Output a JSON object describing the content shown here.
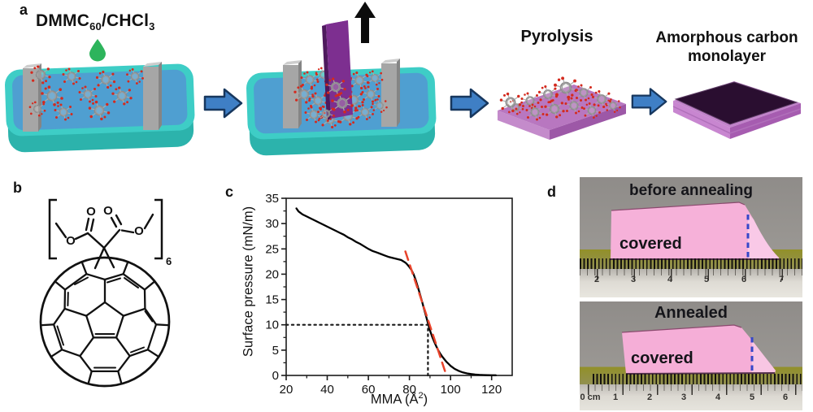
{
  "figure": {
    "panel_a": {
      "label": "a",
      "solution": {
        "pre": "DMMC",
        "sub1": "60",
        "mid": "/CHCl",
        "sub2": "3"
      },
      "step3_label": "Pyrolysis",
      "step4_label_line1": "Amorphous carbon",
      "step4_label_line2": "monolayer"
    },
    "panel_b": {
      "label": "b",
      "bracket_subscript": "6",
      "atoms": {
        "o1": "O",
        "o2": "O",
        "o3": "O",
        "o4": "O"
      }
    },
    "panel_c": {
      "label": "c",
      "ylabel": "Surface pressure (mN/m)",
      "xlabel_pre": "MMA (Å",
      "xlabel_sup": "2",
      "xlabel_post": ")"
    },
    "panel_d": {
      "label": "d",
      "top": {
        "title": "before annealing",
        "film_label": "covered",
        "ruler": [
          "2",
          "3",
          "4",
          "5",
          "6",
          "7"
        ]
      },
      "bottom": {
        "title": "Annealed",
        "film_label": "covered",
        "ruler": [
          "0 cm",
          "1",
          "2",
          "3",
          "4",
          "5",
          "6"
        ]
      }
    }
  },
  "chart_data": {
    "type": "line",
    "title": "",
    "xlabel": "MMA (Å²)",
    "ylabel": "Surface pressure (mN/m)",
    "xlim": [
      20,
      130
    ],
    "ylim": [
      0,
      35
    ],
    "x_ticks": [
      20,
      40,
      60,
      80,
      100,
      120
    ],
    "y_ticks": [
      0,
      5,
      10,
      15,
      20,
      25,
      30,
      35
    ],
    "grid": false,
    "legend": false,
    "series": [
      {
        "name": "compression-isotherm",
        "color": "#000000",
        "style": "solid",
        "width": 2.3,
        "points": [
          [
            25,
            33
          ],
          [
            26,
            32.4
          ],
          [
            28,
            31.8
          ],
          [
            30,
            31.4
          ],
          [
            32,
            31.0
          ],
          [
            34,
            30.6
          ],
          [
            36,
            30.2
          ],
          [
            38,
            29.8
          ],
          [
            40,
            29.4
          ],
          [
            42,
            29.0
          ],
          [
            44,
            28.6
          ],
          [
            46,
            28.2
          ],
          [
            48,
            27.8
          ],
          [
            50,
            27.3
          ],
          [
            52,
            26.9
          ],
          [
            54,
            26.4
          ],
          [
            56,
            26.0
          ],
          [
            58,
            25.5
          ],
          [
            60,
            25.0
          ],
          [
            62,
            24.6
          ],
          [
            64,
            24.3
          ],
          [
            66,
            24.0
          ],
          [
            68,
            23.7
          ],
          [
            70,
            23.4
          ],
          [
            72,
            23.2
          ],
          [
            74,
            23.0
          ],
          [
            76,
            22.8
          ],
          [
            78,
            22.3
          ],
          [
            79,
            21.9
          ],
          [
            80,
            21.4
          ],
          [
            81,
            20.8
          ],
          [
            82,
            20.0
          ],
          [
            83,
            18.9
          ],
          [
            84,
            17.6
          ],
          [
            85,
            16.2
          ],
          [
            86,
            14.8
          ],
          [
            87,
            13.3
          ],
          [
            88,
            11.8
          ],
          [
            89,
            10.3
          ],
          [
            90,
            8.9
          ],
          [
            91,
            7.7
          ],
          [
            92,
            6.7
          ],
          [
            93,
            5.8
          ],
          [
            94,
            5.0
          ],
          [
            95,
            4.3
          ],
          [
            96,
            3.7
          ],
          [
            97,
            3.2
          ],
          [
            98,
            2.7
          ],
          [
            99,
            2.3
          ],
          [
            100,
            1.9
          ],
          [
            102,
            1.3
          ],
          [
            104,
            0.9
          ],
          [
            106,
            0.6
          ],
          [
            108,
            0.4
          ],
          [
            110,
            0.27
          ],
          [
            112,
            0.18
          ],
          [
            114,
            0.12
          ],
          [
            116,
            0.08
          ],
          [
            118,
            0.05
          ],
          [
            120,
            0.04
          ],
          [
            122,
            0.03
          ]
        ]
      },
      {
        "name": "extrapolation-line",
        "color": "#e8432b",
        "style": "dashed",
        "width": 2.5,
        "points": [
          [
            78,
            24.5
          ],
          [
            98,
            0
          ]
        ]
      },
      {
        "name": "guide-horizontal-10mN",
        "color": "#1a1a1a",
        "style": "dotted",
        "width": 2.2,
        "points": [
          [
            20,
            10
          ],
          [
            89,
            10
          ]
        ]
      },
      {
        "name": "guide-vertical-89A2",
        "color": "#1a1a1a",
        "style": "dotted",
        "width": 2.2,
        "points": [
          [
            89,
            0
          ],
          [
            89,
            10
          ]
        ]
      }
    ]
  },
  "colors": {
    "trough_teal": "#3ecdc6",
    "water_blue": "#4f9fd1",
    "barrier_gray": "#a6a6a6",
    "droplet_green": "#2db45c",
    "arrow_blue": "#3f7fc5",
    "arrow_outline": "#17375e",
    "plate_purple": "#7d2f90",
    "substrate_pink": "#b877c0",
    "carbon_dark": "#2a0e30",
    "extrapolation_red": "#e8432b",
    "film_pink": "#f6b1d9",
    "photo_gray": "#949190",
    "dash_blue": "#3547c9",
    "molecule_red": "#d42a1e"
  }
}
